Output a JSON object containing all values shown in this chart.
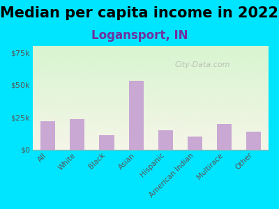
{
  "title": "Median per capita income in 2022",
  "subtitle": "Logansport, IN",
  "categories": [
    "All",
    "White",
    "Black",
    "Asian",
    "Hispanic",
    "American Indian",
    "Multirace",
    "Other"
  ],
  "values": [
    22000,
    23500,
    11000,
    53000,
    15000,
    10000,
    20000,
    14000
  ],
  "bar_color": "#c9a8d4",
  "ylim": [
    0,
    80000
  ],
  "yticks": [
    0,
    25000,
    50000,
    75000
  ],
  "ytick_labels": [
    "$0",
    "$25k",
    "$50k",
    "$75k"
  ],
  "background_outer": "#00e5ff",
  "background_inner_top": "#d8f5d0",
  "background_inner_bottom": "#f5f5e8",
  "title_fontsize": 15,
  "subtitle_fontsize": 12,
  "subtitle_color": "#7030a0",
  "watermark": "City-Data.com",
  "tick_color": "#555555"
}
